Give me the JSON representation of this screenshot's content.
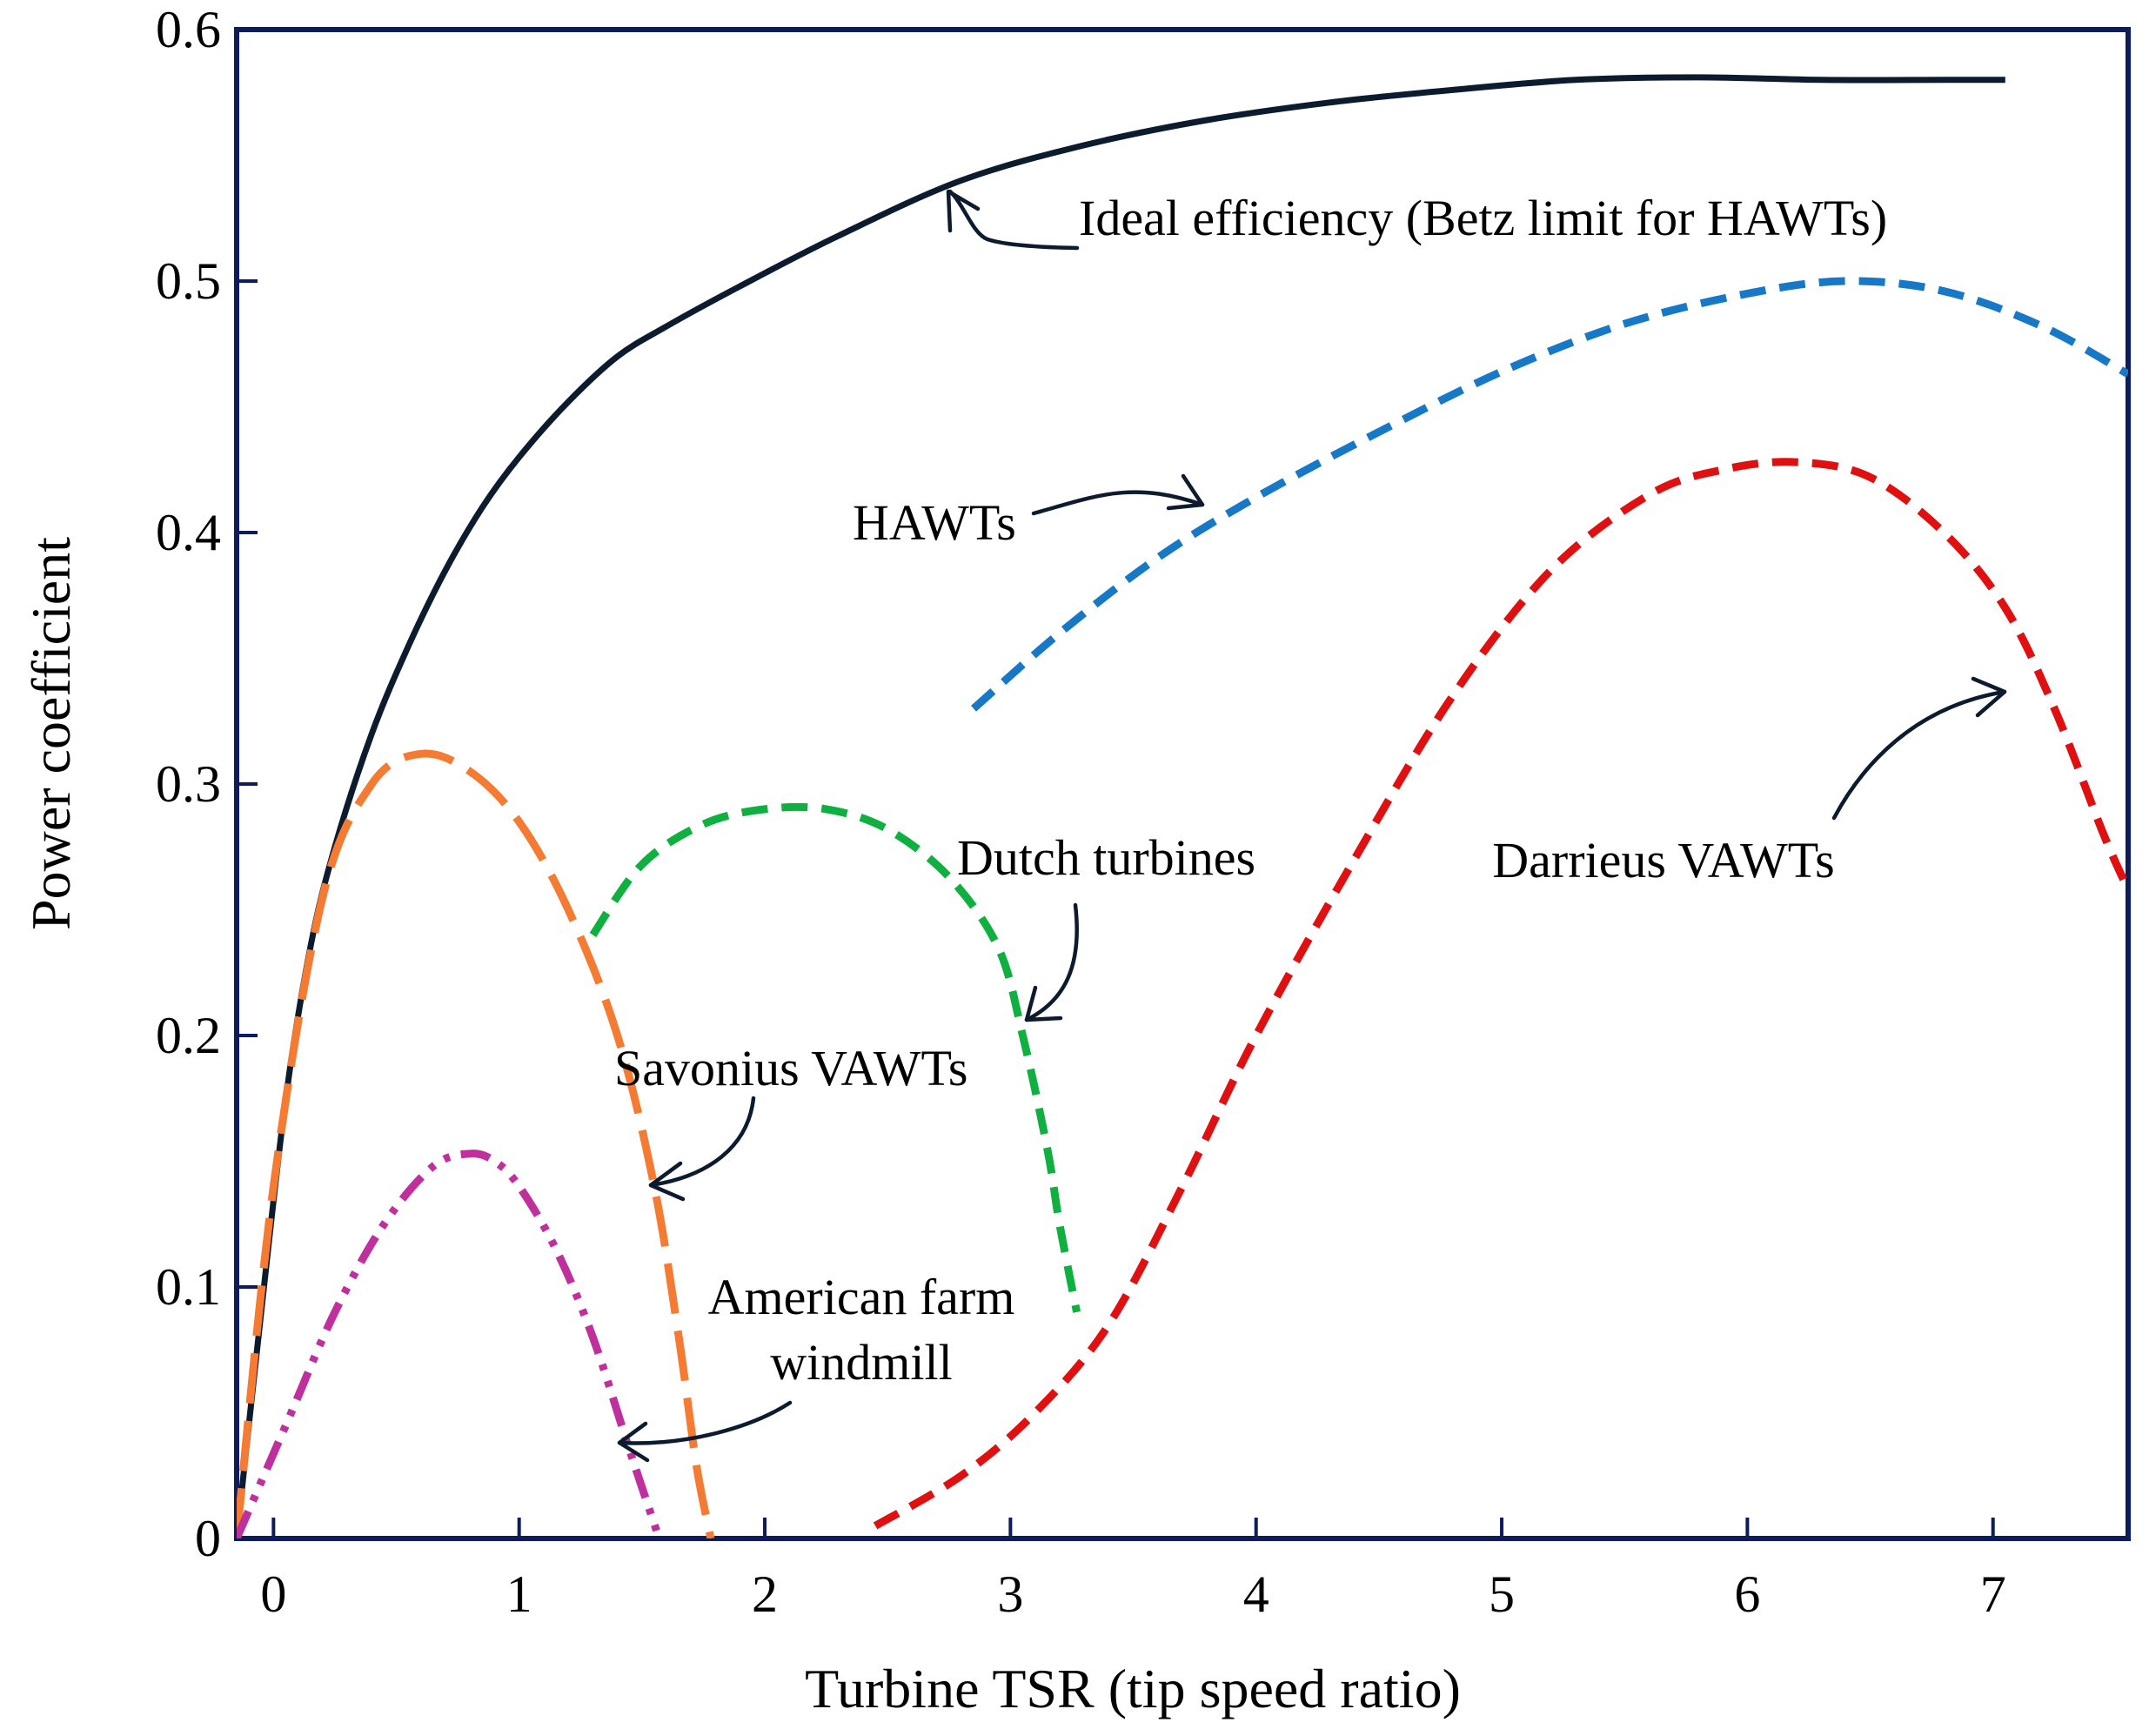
{
  "colors": {
    "frame": "#0c1c5c",
    "ideal": "#0d1b2e",
    "hawt": "#1878c8",
    "darrieus": "#e01010",
    "dutch": "#10b040",
    "savonius": "#f57a32",
    "american": "#c0309c",
    "arrow": "#0d1b2e"
  },
  "chart_data": {
    "type": "line",
    "xlabel": "Turbine TSR (tip speed ratio)",
    "ylabel": "Power coefficient",
    "xlim": [
      -0.15,
      7.55
    ],
    "ylim": [
      0,
      0.6
    ],
    "x_ticks": [
      0,
      1,
      2,
      3,
      4,
      5,
      6,
      7
    ],
    "y_ticks": [
      0,
      0.1,
      0.2,
      0.3,
      0.4,
      0.5,
      0.6
    ],
    "x_tick_labels": [
      "0",
      "1",
      "2",
      "3",
      "4",
      "5",
      "6",
      "7"
    ],
    "y_tick_labels": [
      "0",
      "0.1",
      "0.2",
      "0.3",
      "0.4",
      "0.5",
      "0.6"
    ],
    "series": [
      {
        "name": "Ideal efficiency (Betz limit for HAWTs)",
        "style": "solid",
        "color_key": "ideal",
        "x": [
          -0.15,
          -0.05,
          0.05,
          0.15,
          0.25,
          0.4,
          0.55,
          0.7,
          0.85,
          1.0,
          1.2,
          1.4,
          1.6,
          1.9,
          2.3,
          2.8,
          3.3,
          3.8,
          4.3,
          4.8,
          5.3,
          5.8,
          6.3,
          6.8,
          7.05
        ],
        "y": [
          0.0,
          0.09,
          0.175,
          0.235,
          0.275,
          0.32,
          0.355,
          0.385,
          0.41,
          0.43,
          0.452,
          0.47,
          0.482,
          0.498,
          0.518,
          0.54,
          0.554,
          0.564,
          0.571,
          0.576,
          0.58,
          0.581,
          0.58,
          0.58,
          0.58
        ]
      },
      {
        "name": "HAWTs",
        "style": "dashed",
        "color_key": "hawt",
        "x": [
          2.85,
          3.2,
          3.6,
          4.0,
          4.5,
          5.0,
          5.5,
          6.0,
          6.4,
          6.8,
          7.2,
          7.55
        ],
        "y": [
          0.33,
          0.36,
          0.39,
          0.414,
          0.44,
          0.464,
          0.483,
          0.495,
          0.5,
          0.496,
          0.482,
          0.463
        ]
      },
      {
        "name": "Darrieus VAWTs",
        "style": "dashed",
        "color_key": "darrieus",
        "x": [
          2.45,
          2.8,
          3.1,
          3.4,
          3.7,
          4.0,
          4.4,
          4.8,
          5.2,
          5.6,
          5.9,
          6.2,
          6.5,
          6.8,
          7.05,
          7.25,
          7.45,
          7.55
        ],
        "y": [
          0.005,
          0.025,
          0.05,
          0.085,
          0.14,
          0.2,
          0.27,
          0.335,
          0.385,
          0.415,
          0.425,
          0.428,
          0.422,
          0.4,
          0.37,
          0.33,
          0.28,
          0.258
        ]
      },
      {
        "name": "Dutch turbines",
        "style": "dashed",
        "color_key": "dutch",
        "x": [
          1.3,
          1.5,
          1.75,
          2.0,
          2.25,
          2.5,
          2.75,
          2.95,
          3.05,
          3.15,
          3.2,
          3.27
        ],
        "y": [
          0.24,
          0.268,
          0.284,
          0.29,
          0.29,
          0.282,
          0.263,
          0.235,
          0.2,
          0.155,
          0.125,
          0.09
        ]
      },
      {
        "name": "Savonius VAWTs",
        "style": "long-dashed",
        "color_key": "savonius",
        "x": [
          -0.15,
          0.0,
          0.2,
          0.4,
          0.6,
          0.8,
          1.0,
          1.2,
          1.4,
          1.55,
          1.65,
          1.72,
          1.78
        ],
        "y": [
          0.0,
          0.14,
          0.255,
          0.3,
          0.312,
          0.305,
          0.285,
          0.25,
          0.2,
          0.14,
          0.08,
          0.03,
          0.0
        ]
      },
      {
        "name": "American farm windmill",
        "style": "dash-dot",
        "color_key": "american",
        "x": [
          -0.15,
          0.05,
          0.25,
          0.45,
          0.65,
          0.8,
          0.9,
          1.0,
          1.15,
          1.3,
          1.45,
          1.57
        ],
        "y": [
          0.0,
          0.045,
          0.09,
          0.125,
          0.148,
          0.153,
          0.15,
          0.14,
          0.115,
          0.08,
          0.035,
          0.0
        ]
      }
    ],
    "annotations": [
      {
        "text": "Ideal efficiency (Betz limit for HAWTs)",
        "series": "Ideal efficiency (Betz limit for HAWTs)"
      },
      {
        "text": "HAWTs",
        "series": "HAWTs"
      },
      {
        "text": "Darrieus VAWTs",
        "series": "Darrieus VAWTs"
      },
      {
        "text": "Dutch turbines",
        "series": "Dutch turbines"
      },
      {
        "text": "Savonius VAWTs",
        "series": "Savonius VAWTs"
      },
      {
        "text": "American farm",
        "series": "American farm windmill"
      },
      {
        "text": "windmill",
        "series": "American farm windmill"
      }
    ]
  }
}
